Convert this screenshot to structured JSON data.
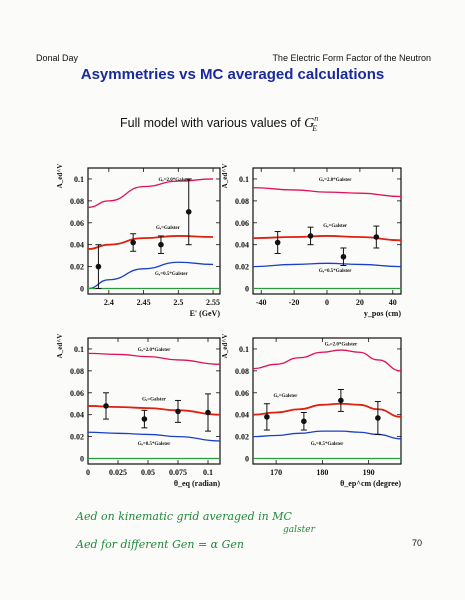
{
  "header": {
    "left": "Donal Day",
    "right": "The Electric Form Factor of the Neutron"
  },
  "title": "Asymmetries vs MC averaged calculations",
  "subtitle": {
    "text": "Full model with various values of",
    "symbol": "G",
    "sup": "n",
    "sub": "E"
  },
  "handwriting": {
    "line1": "Aed  on  kinematic grid  averaged  in  MC",
    "line2": "Aed  for  different  Gen  =  α Gen",
    "line2_sup": "galster"
  },
  "page_number": "70",
  "colors": {
    "title": "#1a2a9c",
    "red": "#e02010",
    "magenta": "#e0105a",
    "blue": "#1a40c8",
    "green_line": "#2a9a40",
    "ink": "#1f8a3a"
  },
  "chart_data": [
    {
      "type": "line",
      "ylabel": "A_ed^V",
      "xlabel": "E' (GeV)",
      "xlim": [
        2.37,
        2.56
      ],
      "ylim": [
        -0.005,
        0.11
      ],
      "xticks": [
        2.4,
        2.45,
        2.5,
        2.55
      ],
      "xticklabels": [
        "2.4",
        "2.45",
        "2.5",
        "2.55"
      ],
      "yticks": [
        0,
        0.02,
        0.04,
        0.06,
        0.08,
        0.1
      ],
      "yticklabels": [
        "0",
        "0.02",
        "0.04",
        "0.06",
        "0.08",
        "0.1"
      ],
      "series": [
        {
          "name": "Gₑ=2.0*Galster",
          "color": "#e0105a",
          "x": [
            2.37,
            2.4,
            2.45,
            2.5,
            2.55
          ],
          "y": [
            0.074,
            0.08,
            0.093,
            0.098,
            0.1
          ]
        },
        {
          "name": "Gₑ=Galster",
          "color": "#e02010",
          "x": [
            2.37,
            2.4,
            2.45,
            2.5,
            2.55
          ],
          "y": [
            0.036,
            0.04,
            0.046,
            0.048,
            0.047
          ]
        },
        {
          "name": "Gₑ=0.5*Galster",
          "color": "#1a40c8",
          "x": [
            2.37,
            2.4,
            2.45,
            2.5,
            2.55
          ],
          "y": [
            0.0,
            0.008,
            0.018,
            0.024,
            0.022
          ]
        },
        {
          "name": "",
          "color": "#2a9a40",
          "x": [
            2.37,
            2.56
          ],
          "y": [
            0.0,
            0.0
          ]
        }
      ],
      "points": [
        {
          "x": 2.385,
          "y": 0.02,
          "err": 0.02
        },
        {
          "x": 2.435,
          "y": 0.042,
          "err": 0.008
        },
        {
          "x": 2.475,
          "y": 0.04,
          "err": 0.008
        },
        {
          "x": 2.515,
          "y": 0.07,
          "err": 0.03
        }
      ],
      "labels": [
        {
          "text": "Gₑ=2.0*Galster",
          "x": 2.495,
          "y": 0.1
        },
        {
          "text": "Gₑ=Galster",
          "x": 2.485,
          "y": 0.056
        },
        {
          "text": "Gₑ=0.5*Galster",
          "x": 2.49,
          "y": 0.014
        }
      ]
    },
    {
      "type": "line",
      "ylabel": "A_ed^V",
      "xlabel": "y_pos (cm)",
      "xlim": [
        -45,
        45
      ],
      "ylim": [
        -0.005,
        0.11
      ],
      "xticks": [
        -40,
        -20,
        0,
        20,
        40
      ],
      "xticklabels": [
        "-40",
        "-20",
        "0",
        "20",
        "40"
      ],
      "yticks": [
        0,
        0.02,
        0.04,
        0.06,
        0.08,
        0.1
      ],
      "yticklabels": [
        "0",
        "0.02",
        "0.04",
        "0.06",
        "0.08",
        "0.1"
      ],
      "series": [
        {
          "name": "Gₑ=2.0*Galster",
          "color": "#e0105a",
          "x": [
            -45,
            -20,
            0,
            20,
            45
          ],
          "y": [
            0.092,
            0.09,
            0.088,
            0.087,
            0.084
          ]
        },
        {
          "name": "Gₑ=Galster",
          "color": "#e02010",
          "x": [
            -45,
            -20,
            0,
            20,
            45
          ],
          "y": [
            0.046,
            0.047,
            0.048,
            0.047,
            0.044
          ]
        },
        {
          "name": "Gₑ=0.5*Galster",
          "color": "#1a40c8",
          "x": [
            -45,
            -20,
            0,
            20,
            45
          ],
          "y": [
            0.02,
            0.022,
            0.023,
            0.022,
            0.02
          ]
        },
        {
          "name": "",
          "color": "#2a9a40",
          "x": [
            -45,
            45
          ],
          "y": [
            0.0,
            0.0
          ]
        }
      ],
      "points": [
        {
          "x": -30,
          "y": 0.042,
          "err": 0.01
        },
        {
          "x": -10,
          "y": 0.048,
          "err": 0.008
        },
        {
          "x": 10,
          "y": 0.029,
          "err": 0.008
        },
        {
          "x": 30,
          "y": 0.047,
          "err": 0.01
        }
      ],
      "labels": [
        {
          "text": "Gₑ=2.0*Galster",
          "x": 5,
          "y": 0.1
        },
        {
          "text": "Gₑ=Galster",
          "x": 5,
          "y": 0.058
        },
        {
          "text": "Gₑ=0.5*Galster",
          "x": 5,
          "y": 0.017
        }
      ]
    },
    {
      "type": "line",
      "ylabel": "A_ed^V",
      "xlabel": "θ_eq (radian)",
      "xlim": [
        0.0,
        0.11
      ],
      "ylim": [
        -0.005,
        0.11
      ],
      "xticks": [
        0,
        0.025,
        0.05,
        0.075,
        0.1
      ],
      "xticklabels": [
        "0",
        "0.025",
        "0.05",
        "0.075",
        "0.1"
      ],
      "yticks": [
        0,
        0.02,
        0.04,
        0.06,
        0.08,
        0.1
      ],
      "yticklabels": [
        "0",
        "0.02",
        "0.04",
        "0.06",
        "0.08",
        "0.1"
      ],
      "series": [
        {
          "name": "Gₑ=2.0*Galster",
          "color": "#e0105a",
          "x": [
            0.0,
            0.025,
            0.05,
            0.075,
            0.11
          ],
          "y": [
            0.096,
            0.095,
            0.093,
            0.09,
            0.086
          ]
        },
        {
          "name": "Gₑ=Galster",
          "color": "#e02010",
          "x": [
            0.0,
            0.025,
            0.05,
            0.075,
            0.11
          ],
          "y": [
            0.048,
            0.047,
            0.046,
            0.044,
            0.04
          ]
        },
        {
          "name": "Gₑ=0.5*Galster",
          "color": "#1a40c8",
          "x": [
            0.0,
            0.025,
            0.05,
            0.075,
            0.11
          ],
          "y": [
            0.024,
            0.023,
            0.022,
            0.02,
            0.016
          ]
        },
        {
          "name": "",
          "color": "#2a9a40",
          "x": [
            0.0,
            0.11
          ],
          "y": [
            0.0,
            0.0
          ]
        }
      ],
      "points": [
        {
          "x": 0.015,
          "y": 0.048,
          "err": 0.012
        },
        {
          "x": 0.047,
          "y": 0.036,
          "err": 0.008
        },
        {
          "x": 0.075,
          "y": 0.043,
          "err": 0.01
        },
        {
          "x": 0.1,
          "y": 0.042,
          "err": 0.017
        }
      ],
      "labels": [
        {
          "text": "Gₑ=2.0*Galster",
          "x": 0.055,
          "y": 0.1
        },
        {
          "text": "Gₑ=Galster",
          "x": 0.055,
          "y": 0.055
        },
        {
          "text": "Gₑ=0.5*Galster",
          "x": 0.055,
          "y": 0.014
        }
      ]
    },
    {
      "type": "line",
      "ylabel": "A_ed^V",
      "xlabel": "θ_ep^cm (degree)",
      "xlim": [
        165,
        197
      ],
      "ylim": [
        -0.005,
        0.11
      ],
      "xticks": [
        170,
        180,
        190
      ],
      "xticklabels": [
        "170",
        "180",
        "190"
      ],
      "yticks": [
        0,
        0.02,
        0.04,
        0.06,
        0.08,
        0.1
      ],
      "yticklabels": [
        "0",
        "0.02",
        "0.04",
        "0.06",
        "0.08",
        "0.1"
      ],
      "series": [
        {
          "name": "Gₑ=2.0*Galster",
          "color": "#e0105a",
          "x": [
            165,
            170,
            175,
            180,
            184,
            188,
            192,
            197
          ],
          "y": [
            0.082,
            0.086,
            0.092,
            0.097,
            0.099,
            0.097,
            0.09,
            0.08
          ]
        },
        {
          "name": "Gₑ=Galster",
          "color": "#e02010",
          "x": [
            165,
            170,
            175,
            180,
            184,
            188,
            192,
            197
          ],
          "y": [
            0.04,
            0.042,
            0.045,
            0.049,
            0.05,
            0.049,
            0.045,
            0.038
          ]
        },
        {
          "name": "Gₑ=0.5*Galster",
          "color": "#1a40c8",
          "x": [
            165,
            170,
            175,
            180,
            184,
            188,
            192,
            197
          ],
          "y": [
            0.02,
            0.021,
            0.023,
            0.025,
            0.025,
            0.024,
            0.022,
            0.018
          ]
        },
        {
          "name": "",
          "color": "#2a9a40",
          "x": [
            165,
            197
          ],
          "y": [
            0.0,
            0.0
          ]
        }
      ],
      "points": [
        {
          "x": 168,
          "y": 0.038,
          "err": 0.012
        },
        {
          "x": 176,
          "y": 0.034,
          "err": 0.008
        },
        {
          "x": 184,
          "y": 0.053,
          "err": 0.01
        },
        {
          "x": 192,
          "y": 0.037,
          "err": 0.015
        }
      ],
      "labels": [
        {
          "text": "Gₑ=2.0*Galster",
          "x": 184,
          "y": 0.105
        },
        {
          "text": "Gₑ=Galster",
          "x": 172,
          "y": 0.058
        },
        {
          "text": "Gₑ=0.5*Galster",
          "x": 181,
          "y": 0.014
        }
      ]
    }
  ]
}
